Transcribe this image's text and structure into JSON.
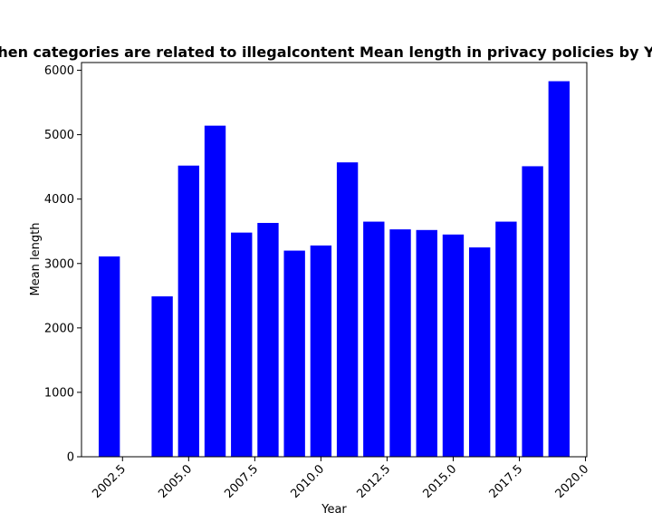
{
  "chart_data": {
    "type": "bar",
    "title": "hen categories are related to illegalcontent Mean length in privacy policies by Y",
    "xlabel": "Year",
    "ylabel": "Mean length",
    "bar_color": "#0000ff",
    "x": [
      2002,
      2004,
      2005,
      2006,
      2007,
      2008,
      2009,
      2010,
      2011,
      2012,
      2013,
      2014,
      2015,
      2016,
      2017,
      2018,
      2019
    ],
    "values": [
      3110,
      2490,
      4520,
      5140,
      3480,
      3630,
      3200,
      3280,
      4570,
      3650,
      3530,
      3520,
      3450,
      3250,
      3650,
      4510,
      5830
    ],
    "xlim": [
      2000.95,
      2020.05
    ],
    "ylim": [
      0,
      6120
    ],
    "xticks": [
      2002.5,
      2005.0,
      2007.5,
      2010.0,
      2012.5,
      2015.0,
      2017.5,
      2020.0
    ],
    "xtick_labels": [
      "2002.5",
      "2005.0",
      "2007.5",
      "2010.0",
      "2012.5",
      "2015.0",
      "2017.5",
      "2020.0"
    ],
    "yticks": [
      0,
      1000,
      2000,
      3000,
      4000,
      5000,
      6000
    ],
    "ytick_labels": [
      "0",
      "1000",
      "2000",
      "3000",
      "4000",
      "5000",
      "6000"
    ],
    "bar_width": 0.8,
    "grid": false,
    "legend": "none"
  }
}
